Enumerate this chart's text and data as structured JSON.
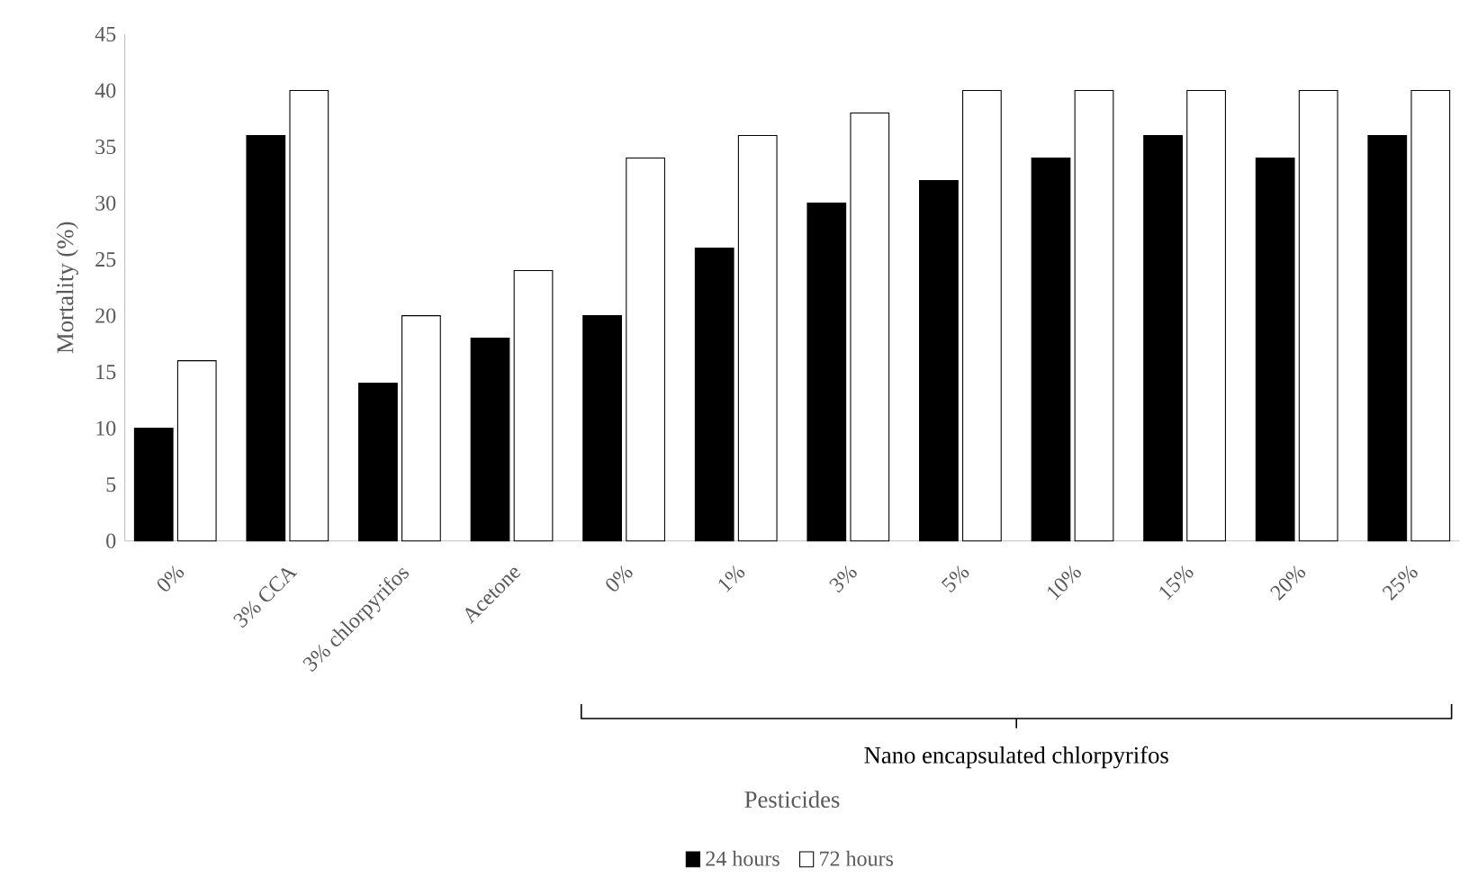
{
  "chart_data": {
    "type": "bar",
    "xlabel": "Pesticides",
    "ylabel": "Mortality (%)",
    "categories": [
      "0%",
      "3% CCA",
      "3% chlorpyrifos",
      "Acetone",
      "0%",
      "1%",
      "3%",
      "5%",
      "10%",
      "15%",
      "20%",
      "25%"
    ],
    "series": [
      {
        "name": "24 hours",
        "color": "#000000",
        "values": [
          10,
          36,
          14,
          18,
          20,
          26,
          30,
          32,
          34,
          36,
          34,
          36
        ]
      },
      {
        "name": "72 hours",
        "color": "#ffffff",
        "values": [
          16,
          40,
          20,
          24,
          34,
          36,
          38,
          40,
          40,
          40,
          40,
          40
        ]
      }
    ],
    "ylim": [
      0,
      45
    ],
    "yticks": [
      0,
      5,
      10,
      15,
      20,
      25,
      30,
      35,
      40,
      45
    ],
    "grid": false,
    "legend": "bottom",
    "annotations": [
      "Nano encapsulated chlorpyrifos"
    ]
  }
}
